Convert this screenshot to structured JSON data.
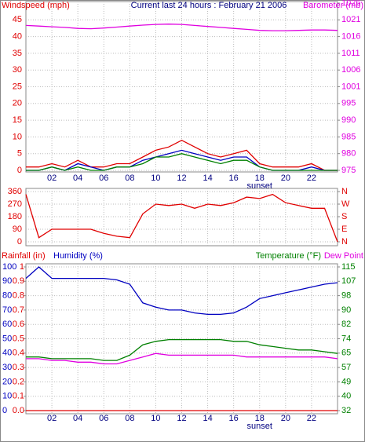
{
  "chart_data": [
    {
      "type": "line",
      "title": "Current last 24 hours : February 21 2006",
      "ylabel": "Windspeed (mph)",
      "ycolor": "#e00000",
      "y2label": "Barometer (mb)",
      "y2color": "#e000e0",
      "xlim": [
        0,
        24
      ],
      "xticks": [
        {
          "value": 2,
          "label": "02"
        },
        {
          "value": 4,
          "label": "04"
        },
        {
          "value": 6,
          "label": "06"
        },
        {
          "value": 8,
          "label": "08"
        },
        10,
        12,
        14,
        16,
        18,
        20,
        22
      ],
      "show_xtick_labels": true,
      "annotations": [
        {
          "x": 18,
          "text": "sunset"
        }
      ],
      "ylim": [
        0,
        50
      ],
      "yticks": [
        0,
        5,
        10,
        15,
        20,
        25,
        30,
        35,
        40,
        45
      ],
      "y2lim": [
        975,
        1026
      ],
      "y2ticks": [
        975,
        {
          "value": 980.1,
          "label": "980"
        },
        {
          "value": 985.2,
          "label": "985"
        },
        {
          "value": 990.3,
          "label": "990"
        },
        {
          "value": 995.4,
          "label": "995"
        },
        {
          "value": 1000.5,
          "label": "1001"
        },
        {
          "value": 1005.6,
          "label": "1006"
        },
        {
          "value": 1010.7,
          "label": "1011"
        },
        {
          "value": 1015.8,
          "label": "1016"
        },
        {
          "value": 1020.9,
          "label": "1021"
        },
        1026
      ],
      "grid": true,
      "x": [
        0,
        1,
        2,
        3,
        4,
        5,
        6,
        7,
        8,
        9,
        10,
        11,
        12,
        13,
        14,
        15,
        16,
        17,
        18,
        19,
        20,
        21,
        22,
        23,
        24
      ],
      "series": [
        {
          "color": "#e000e0",
          "axis": "y2",
          "values": [
            1019.2,
            1019.0,
            1018.8,
            1018.6,
            1018.3,
            1018.2,
            1018.4,
            1018.7,
            1019.0,
            1019.3,
            1019.5,
            1019.6,
            1019.5,
            1019.2,
            1018.9,
            1018.6,
            1018.3,
            1018.0,
            1017.7,
            1017.6,
            1017.6,
            1017.7,
            1017.8,
            1017.8,
            1017.7
          ]
        },
        {
          "color": "#e00000",
          "values": [
            1,
            1,
            2,
            1,
            3,
            1,
            1,
            2,
            2,
            4,
            6,
            7,
            9,
            7,
            5,
            4,
            5,
            6,
            2,
            1,
            1,
            1,
            2,
            0,
            0
          ]
        },
        {
          "color": "#0000c0",
          "values": [
            0,
            0,
            1,
            0,
            2,
            1,
            0,
            1,
            1,
            3,
            4,
            5,
            6,
            5,
            4,
            3,
            4,
            4,
            1,
            0,
            0,
            0,
            1,
            0,
            0
          ]
        },
        {
          "color": "#008000",
          "values": [
            0,
            0,
            1,
            0,
            1,
            0,
            0,
            1,
            1,
            2,
            4,
            4,
            5,
            4,
            3,
            2,
            3,
            3,
            1,
            0,
            0,
            0,
            0,
            0,
            0
          ]
        }
      ]
    },
    {
      "type": "line",
      "ycolor": "#e00000",
      "y2color": "#e00000",
      "xlim": [
        0,
        24
      ],
      "xticks": [
        2,
        4,
        6,
        8,
        10,
        12,
        14,
        16,
        18,
        20,
        22
      ],
      "show_xtick_labels": false,
      "ylim": [
        0,
        360
      ],
      "yticks": [
        0,
        90,
        180,
        270,
        360
      ],
      "y2lim": [
        0,
        360
      ],
      "y2ticks": [
        {
          "value": 0,
          "label": "N"
        },
        {
          "value": 90,
          "label": "E"
        },
        {
          "value": 180,
          "label": "S"
        },
        {
          "value": 270,
          "label": "W"
        },
        {
          "value": 360,
          "label": "N"
        }
      ],
      "grid": true,
      "x": [
        0,
        1,
        2,
        3,
        4,
        5,
        6,
        7,
        8,
        9,
        10,
        11,
        12,
        13,
        14,
        15,
        16,
        17,
        18,
        19,
        20,
        21,
        22,
        23,
        24
      ],
      "series": [
        {
          "color": "#e00000",
          "values": [
            340,
            30,
            90,
            90,
            90,
            90,
            60,
            40,
            30,
            200,
            270,
            260,
            270,
            240,
            270,
            260,
            280,
            320,
            310,
            340,
            280,
            260,
            240,
            240,
            0
          ]
        }
      ]
    },
    {
      "type": "line",
      "ylabel_rain": "Rainfall (in)",
      "rain_color": "#e00000",
      "ylabel": "Humidity (%)",
      "ycolor": "#0000c0",
      "y2label": "Temperature (°F)",
      "y2color": "#008000",
      "y2label_extra": "Dew Point",
      "extra_color": "#e000e0",
      "xlim": [
        0,
        24
      ],
      "xticks": [
        {
          "value": 2,
          "label": "02"
        },
        {
          "value": 4,
          "label": "04"
        },
        {
          "value": 6,
          "label": "06"
        },
        {
          "value": 8,
          "label": "08"
        },
        10,
        12,
        14,
        16,
        18,
        20,
        22
      ],
      "show_xtick_labels": true,
      "annotations": [
        {
          "x": 18,
          "text": "sunset"
        }
      ],
      "ylim": [
        0,
        100
      ],
      "yticks": [
        0,
        10,
        20,
        30,
        40,
        50,
        60,
        70,
        80,
        90,
        100
      ],
      "ylim_rain": [
        0,
        1
      ],
      "yticks_rain": [
        {
          "value": 0,
          "label": "0.0"
        },
        0.1,
        0.2,
        0.3,
        0.4,
        0.5,
        0.6,
        0.7,
        0.8,
        0.9,
        1
      ],
      "y2lim": [
        32,
        115
      ],
      "y2ticks": [
        32,
        {
          "value": 40.3,
          "label": "40"
        },
        {
          "value": 48.6,
          "label": "49"
        },
        {
          "value": 56.9,
          "label": "57"
        },
        {
          "value": 65.2,
          "label": "65"
        },
        {
          "value": 73.5,
          "label": "74"
        },
        {
          "value": 81.8,
          "label": "82"
        },
        {
          "value": 90.1,
          "label": "90"
        },
        {
          "value": 98.4,
          "label": "98"
        },
        {
          "value": 106.7,
          "label": "107"
        },
        115
      ],
      "grid": true,
      "x": [
        0,
        1,
        2,
        3,
        4,
        5,
        6,
        7,
        8,
        9,
        10,
        11,
        12,
        13,
        14,
        15,
        16,
        17,
        18,
        19,
        20,
        21,
        22,
        23,
        24
      ],
      "series": [
        {
          "color": "#0000c0",
          "values": [
            92,
            100,
            92,
            92,
            92,
            92,
            92,
            91,
            88,
            75,
            72,
            70,
            70,
            68,
            67,
            67,
            68,
            72,
            78,
            80,
            82,
            84,
            86,
            88,
            89
          ]
        },
        {
          "color": "#e00000",
          "axis": "y_rain",
          "values": [
            0,
            0,
            0,
            0,
            0,
            0,
            0,
            0,
            0,
            0,
            0,
            0,
            0,
            0,
            0,
            0,
            0,
            0,
            0,
            0,
            0,
            0,
            0,
            0,
            0
          ]
        },
        {
          "color": "#008000",
          "axis": "y2",
          "values": [
            63,
            63,
            62,
            62,
            62,
            62,
            61,
            61,
            64,
            70,
            72,
            73,
            73,
            73,
            73,
            73,
            72,
            72,
            70,
            69,
            68,
            67,
            67,
            66,
            65
          ]
        },
        {
          "color": "#e000e0",
          "axis": "y2",
          "values": [
            62,
            62,
            61,
            61,
            60,
            60,
            59,
            59,
            61,
            63,
            65,
            64,
            64,
            64,
            64,
            64,
            64,
            63,
            63,
            63,
            63,
            63,
            63,
            63,
            62
          ]
        }
      ]
    }
  ]
}
